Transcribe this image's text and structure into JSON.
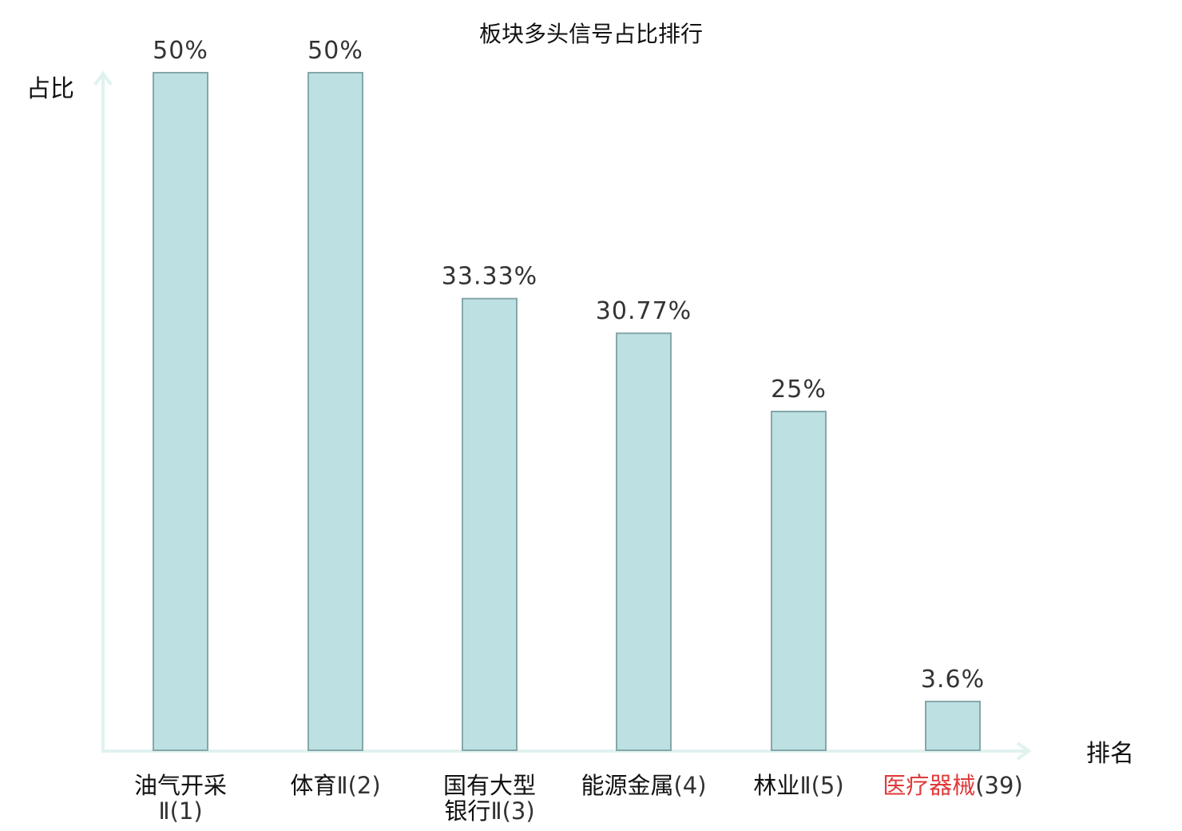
{
  "chart_data": {
    "type": "bar",
    "title": "板块多头信号占比排行",
    "xlabel": "排名",
    "ylabel": "占比",
    "ylim": [
      0,
      50
    ],
    "categories": [
      {
        "lines": [
          {
            "name": "油气开采",
            "suffix": ""
          },
          {
            "name": "",
            "suffix": "Ⅱ(1)"
          }
        ],
        "highlight": false
      },
      {
        "lines": [
          {
            "name": "体育",
            "suffix": "Ⅱ(2)"
          }
        ],
        "highlight": false
      },
      {
        "lines": [
          {
            "name": "国有大型",
            "suffix": ""
          },
          {
            "name": "银行",
            "suffix": "Ⅱ(3)"
          }
        ],
        "highlight": false
      },
      {
        "lines": [
          {
            "name": "能源金属",
            "suffix": "(4)"
          }
        ],
        "highlight": false
      },
      {
        "lines": [
          {
            "name": "林业",
            "suffix": "Ⅱ(5)"
          }
        ],
        "highlight": false
      },
      {
        "lines": [
          {
            "name": "医疗器械",
            "suffix": "(39)"
          }
        ],
        "highlight": true
      }
    ],
    "values": [
      50,
      50,
      33.33,
      30.77,
      25,
      3.6
    ],
    "value_labels": [
      "50%",
      "50%",
      "33.33%",
      "30.77%",
      "25%",
      "3.6%"
    ],
    "grid": false,
    "legend": "none"
  },
  "colors": {
    "bar_fill": "#bde0e2",
    "bar_stroke": "#86a7a9",
    "axis": "#e0f2ef",
    "highlight": "#e03a3a",
    "text": "#111111",
    "value_text": "#333333"
  }
}
